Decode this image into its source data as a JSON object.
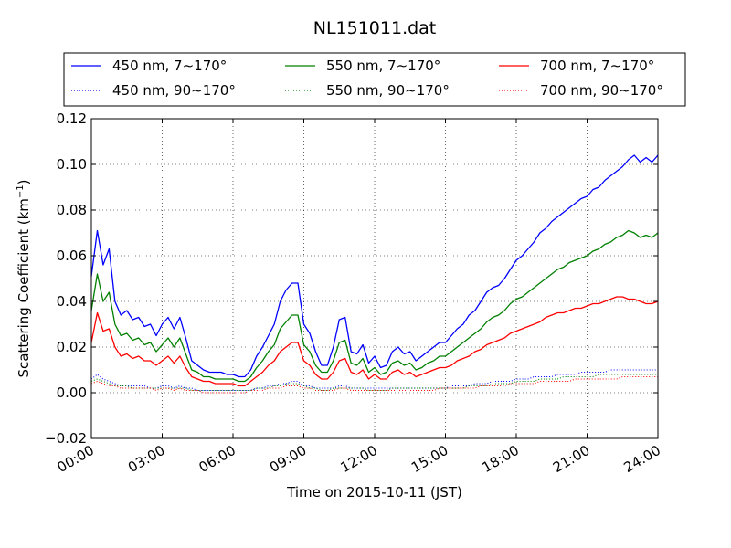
{
  "chart_data": {
    "type": "line",
    "title": "NL151011.dat",
    "xlabel": "Time on 2015-10-11 (JST)",
    "ylabel_main": "Scattering Coefficient (km",
    "ylabel_exp": "−1",
    "ylabel_close": ")",
    "xlim_hours": [
      0,
      24
    ],
    "ylim": [
      -0.02,
      0.12
    ],
    "x_ticks": [
      {
        "hour": 0,
        "label": "00:00"
      },
      {
        "hour": 3,
        "label": "03:00"
      },
      {
        "hour": 6,
        "label": "06:00"
      },
      {
        "hour": 9,
        "label": "09:00"
      },
      {
        "hour": 12,
        "label": "12:00"
      },
      {
        "hour": 15,
        "label": "15:00"
      },
      {
        "hour": 18,
        "label": "18:00"
      },
      {
        "hour": 21,
        "label": "21:00"
      },
      {
        "hour": 24,
        "label": "24:00"
      }
    ],
    "y_ticks": [
      {
        "value": -0.02,
        "label": "−0.02"
      },
      {
        "value": 0.0,
        "label": "0.00"
      },
      {
        "value": 0.02,
        "label": "0.02"
      },
      {
        "value": 0.04,
        "label": "0.04"
      },
      {
        "value": 0.06,
        "label": "0.06"
      },
      {
        "value": 0.08,
        "label": "0.08"
      },
      {
        "value": 0.1,
        "label": "0.10"
      },
      {
        "value": 0.12,
        "label": "0.12"
      }
    ],
    "grid": true,
    "legend_position": "top-center, above plot, 3 columns",
    "x": [
      0,
      0.25,
      0.5,
      0.75,
      1,
      1.25,
      1.5,
      1.75,
      2,
      2.25,
      2.5,
      2.75,
      3,
      3.25,
      3.5,
      3.75,
      4,
      4.25,
      4.5,
      4.75,
      5,
      5.25,
      5.5,
      5.75,
      6,
      6.25,
      6.5,
      6.75,
      7,
      7.25,
      7.5,
      7.75,
      8,
      8.25,
      8.5,
      8.75,
      9,
      9.25,
      9.5,
      9.75,
      10,
      10.25,
      10.5,
      10.75,
      11,
      11.25,
      11.5,
      11.75,
      12,
      12.25,
      12.5,
      12.75,
      13,
      13.25,
      13.5,
      13.75,
      14,
      14.25,
      14.5,
      14.75,
      15,
      15.25,
      15.5,
      15.75,
      16,
      16.25,
      16.5,
      16.75,
      17,
      17.25,
      17.5,
      17.75,
      18,
      18.25,
      18.5,
      18.75,
      19,
      19.25,
      19.5,
      19.75,
      20,
      20.25,
      20.5,
      20.75,
      21,
      21.25,
      21.5,
      21.75,
      22,
      22.25,
      22.5,
      22.75,
      23,
      23.25,
      23.5,
      23.75,
      24
    ],
    "series": [
      {
        "name": "450 nm, 7∼170°",
        "color": "#0000ff",
        "style": "solid",
        "values": [
          0.051,
          0.071,
          0.056,
          0.063,
          0.04,
          0.034,
          0.036,
          0.032,
          0.033,
          0.029,
          0.03,
          0.025,
          0.03,
          0.033,
          0.028,
          0.033,
          0.024,
          0.014,
          0.012,
          0.01,
          0.009,
          0.009,
          0.009,
          0.008,
          0.008,
          0.007,
          0.007,
          0.01,
          0.016,
          0.02,
          0.025,
          0.03,
          0.04,
          0.045,
          0.048,
          0.048,
          0.03,
          0.026,
          0.018,
          0.012,
          0.012,
          0.02,
          0.032,
          0.033,
          0.018,
          0.017,
          0.021,
          0.013,
          0.016,
          0.011,
          0.012,
          0.018,
          0.02,
          0.017,
          0.018,
          0.014,
          0.016,
          0.018,
          0.02,
          0.022,
          0.022,
          0.025,
          0.028,
          0.03,
          0.034,
          0.036,
          0.04,
          0.044,
          0.046,
          0.047,
          0.05,
          0.054,
          0.058,
          0.06,
          0.063,
          0.066,
          0.07,
          0.072,
          0.075,
          0.077,
          0.079,
          0.081,
          0.083,
          0.085,
          0.086,
          0.089,
          0.09,
          0.093,
          0.095,
          0.097,
          0.099,
          0.102,
          0.104,
          0.101,
          0.103,
          0.101,
          0.104
        ]
      },
      {
        "name": "550 nm, 7∼170°",
        "color": "#008000",
        "style": "solid",
        "values": [
          0.036,
          0.052,
          0.04,
          0.044,
          0.03,
          0.025,
          0.026,
          0.023,
          0.024,
          0.021,
          0.022,
          0.018,
          0.021,
          0.024,
          0.02,
          0.024,
          0.017,
          0.01,
          0.009,
          0.007,
          0.007,
          0.006,
          0.006,
          0.006,
          0.006,
          0.005,
          0.005,
          0.007,
          0.011,
          0.014,
          0.018,
          0.021,
          0.028,
          0.031,
          0.034,
          0.034,
          0.021,
          0.018,
          0.012,
          0.009,
          0.009,
          0.014,
          0.022,
          0.023,
          0.013,
          0.012,
          0.015,
          0.009,
          0.011,
          0.008,
          0.009,
          0.013,
          0.014,
          0.012,
          0.013,
          0.01,
          0.011,
          0.013,
          0.014,
          0.016,
          0.016,
          0.018,
          0.02,
          0.022,
          0.024,
          0.026,
          0.028,
          0.031,
          0.033,
          0.034,
          0.036,
          0.039,
          0.041,
          0.042,
          0.044,
          0.046,
          0.048,
          0.05,
          0.052,
          0.054,
          0.055,
          0.057,
          0.058,
          0.059,
          0.06,
          0.062,
          0.063,
          0.065,
          0.066,
          0.068,
          0.069,
          0.071,
          0.07,
          0.068,
          0.069,
          0.068,
          0.07
        ]
      },
      {
        "name": "700 nm, 7∼170°",
        "color": "#ff0000",
        "style": "solid",
        "values": [
          0.022,
          0.035,
          0.027,
          0.028,
          0.02,
          0.016,
          0.017,
          0.015,
          0.016,
          0.014,
          0.014,
          0.012,
          0.014,
          0.016,
          0.013,
          0.016,
          0.011,
          0.007,
          0.006,
          0.005,
          0.005,
          0.004,
          0.004,
          0.004,
          0.004,
          0.003,
          0.003,
          0.005,
          0.007,
          0.009,
          0.012,
          0.014,
          0.018,
          0.02,
          0.022,
          0.022,
          0.014,
          0.012,
          0.008,
          0.006,
          0.006,
          0.009,
          0.014,
          0.015,
          0.009,
          0.008,
          0.01,
          0.006,
          0.008,
          0.006,
          0.006,
          0.009,
          0.01,
          0.008,
          0.009,
          0.007,
          0.008,
          0.009,
          0.01,
          0.011,
          0.011,
          0.012,
          0.014,
          0.015,
          0.016,
          0.018,
          0.019,
          0.021,
          0.022,
          0.023,
          0.024,
          0.026,
          0.027,
          0.028,
          0.029,
          0.03,
          0.031,
          0.033,
          0.034,
          0.035,
          0.035,
          0.036,
          0.037,
          0.037,
          0.038,
          0.039,
          0.039,
          0.04,
          0.041,
          0.042,
          0.042,
          0.041,
          0.041,
          0.04,
          0.039,
          0.039,
          0.04
        ]
      },
      {
        "name": "450 nm, 90∼170°",
        "color": "#0000ff",
        "style": "dotted",
        "values": [
          0.006,
          0.008,
          0.006,
          0.005,
          0.004,
          0.003,
          0.003,
          0.003,
          0.003,
          0.003,
          0.002,
          0.002,
          0.003,
          0.003,
          0.002,
          0.003,
          0.002,
          0.002,
          0.001,
          0.001,
          0.001,
          0.001,
          0.001,
          0.001,
          0.001,
          0.001,
          0.001,
          0.001,
          0.002,
          0.002,
          0.003,
          0.003,
          0.004,
          0.004,
          0.005,
          0.005,
          0.003,
          0.003,
          0.002,
          0.002,
          0.002,
          0.002,
          0.003,
          0.003,
          0.002,
          0.002,
          0.002,
          0.002,
          0.002,
          0.002,
          0.002,
          0.002,
          0.002,
          0.002,
          0.002,
          0.002,
          0.002,
          0.002,
          0.002,
          0.002,
          0.002,
          0.003,
          0.003,
          0.003,
          0.003,
          0.004,
          0.004,
          0.004,
          0.005,
          0.005,
          0.005,
          0.005,
          0.006,
          0.006,
          0.006,
          0.007,
          0.007,
          0.007,
          0.007,
          0.008,
          0.008,
          0.008,
          0.008,
          0.009,
          0.009,
          0.009,
          0.009,
          0.009,
          0.01,
          0.01,
          0.01,
          0.01,
          0.01,
          0.01,
          0.01,
          0.01,
          0.01
        ]
      },
      {
        "name": "550 nm, 90∼170°",
        "color": "#008000",
        "style": "dotted",
        "values": [
          0.005,
          0.006,
          0.005,
          0.004,
          0.003,
          0.003,
          0.003,
          0.002,
          0.002,
          0.002,
          0.002,
          0.002,
          0.002,
          0.002,
          0.002,
          0.002,
          0.002,
          0.001,
          0.001,
          0.001,
          0.001,
          0.001,
          0.001,
          0.001,
          0.001,
          0.001,
          0.001,
          0.001,
          0.002,
          0.002,
          0.002,
          0.003,
          0.003,
          0.004,
          0.004,
          0.004,
          0.003,
          0.002,
          0.002,
          0.001,
          0.001,
          0.002,
          0.002,
          0.002,
          0.002,
          0.002,
          0.002,
          0.001,
          0.001,
          0.001,
          0.001,
          0.002,
          0.002,
          0.002,
          0.002,
          0.002,
          0.002,
          0.002,
          0.002,
          0.002,
          0.002,
          0.002,
          0.002,
          0.002,
          0.003,
          0.003,
          0.003,
          0.003,
          0.004,
          0.004,
          0.004,
          0.004,
          0.005,
          0.005,
          0.005,
          0.005,
          0.006,
          0.006,
          0.006,
          0.006,
          0.007,
          0.007,
          0.007,
          0.007,
          0.007,
          0.007,
          0.008,
          0.008,
          0.008,
          0.008,
          0.008,
          0.008,
          0.008,
          0.008,
          0.008,
          0.008,
          0.008
        ]
      },
      {
        "name": "700 nm, 90∼170°",
        "color": "#ff0000",
        "style": "dotted",
        "values": [
          0.004,
          0.005,
          0.004,
          0.003,
          0.003,
          0.002,
          0.002,
          0.002,
          0.002,
          0.002,
          0.002,
          0.001,
          0.002,
          0.002,
          0.001,
          0.002,
          0.001,
          0.001,
          0.001,
          0.0,
          0.0,
          0.0,
          0.0,
          0.0,
          0.0,
          0.0,
          0.0,
          0.001,
          0.001,
          0.001,
          0.002,
          0.002,
          0.002,
          0.003,
          0.003,
          0.003,
          0.002,
          0.002,
          0.001,
          0.001,
          0.001,
          0.001,
          0.002,
          0.002,
          0.001,
          0.001,
          0.001,
          0.001,
          0.001,
          0.001,
          0.001,
          0.001,
          0.001,
          0.001,
          0.001,
          0.001,
          0.001,
          0.001,
          0.001,
          0.002,
          0.002,
          0.002,
          0.002,
          0.002,
          0.002,
          0.002,
          0.003,
          0.003,
          0.003,
          0.003,
          0.003,
          0.004,
          0.004,
          0.004,
          0.004,
          0.004,
          0.005,
          0.005,
          0.005,
          0.005,
          0.005,
          0.005,
          0.006,
          0.006,
          0.006,
          0.006,
          0.006,
          0.006,
          0.006,
          0.006,
          0.007,
          0.007,
          0.007,
          0.007,
          0.007,
          0.007,
          0.007
        ]
      }
    ],
    "legend_order": [
      0,
      1,
      2,
      3,
      4,
      5
    ]
  }
}
